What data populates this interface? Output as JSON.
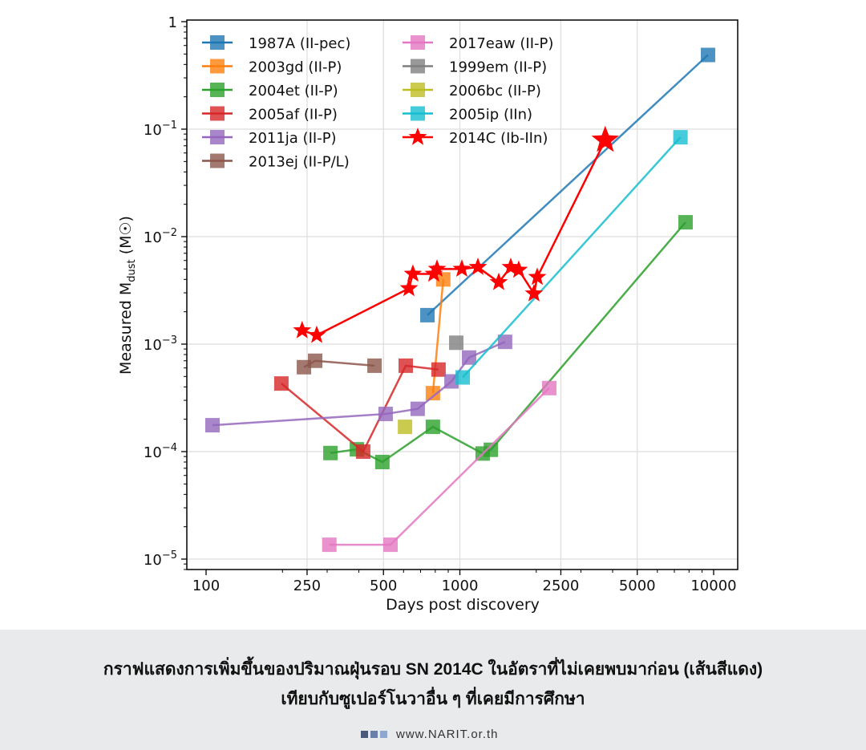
{
  "chart_data": {
    "type": "line",
    "xlabel": "Days post discovery",
    "ylabel": "Measured M_dust (M☉)",
    "xscale": "log",
    "yscale": "log",
    "xlim": [
      80,
      12500
    ],
    "ylim": [
      8e-06,
      1
    ],
    "xticks": [
      100,
      250,
      500,
      1000,
      2500,
      5000,
      10000
    ],
    "xticklabels": [
      "100",
      "250",
      "500",
      "1000",
      "2500",
      "5000",
      "10000"
    ],
    "yticks": [
      1,
      0.1,
      0.01,
      0.001,
      0.0001,
      1e-05
    ],
    "grid": true,
    "legend": "top-left",
    "series": [
      {
        "name": "1987A (II-pec)",
        "color": "#1f77b4",
        "marker": "square",
        "x": [
          745,
          9500
        ],
        "y": [
          0.00186,
          0.49
        ]
      },
      {
        "name": "2003gd (II-P)",
        "color": "#ff7f0e",
        "marker": "square",
        "x": [
          783,
          860
        ],
        "y": [
          0.00035,
          0.004
        ]
      },
      {
        "name": "2004et (II-P)",
        "color": "#2ca02c",
        "marker": "square",
        "x": [
          309,
          393,
          495,
          783,
          1230,
          1325,
          7750
        ],
        "y": [
          9.7e-05,
          0.000105,
          8e-05,
          0.00017,
          9.6e-05,
          0.000104,
          0.0136
        ]
      },
      {
        "name": "2005af (II-P)",
        "color": "#d62728",
        "marker": "square",
        "x": [
          198,
          416,
          612,
          824
        ],
        "y": [
          0.00043,
          0.0001,
          0.00063,
          0.00058
        ]
      },
      {
        "name": "2011ja (II-P)",
        "color": "#9467bd",
        "marker": "square",
        "x": [
          106,
          510,
          682,
          927,
          1087,
          1507
        ],
        "y": [
          0.000176,
          0.000224,
          0.00025,
          0.00045,
          0.00075,
          0.00105
        ]
      },
      {
        "name": "2013ej (II-P/L)",
        "color": "#8c564b",
        "marker": "square",
        "x": [
          243,
          269,
          461
        ],
        "y": [
          0.00061,
          0.0007,
          0.00063
        ]
      },
      {
        "name": "2017eaw (II-P)",
        "color": "#e377c2",
        "marker": "square",
        "x": [
          306,
          533,
          2250
        ],
        "y": [
          1.36e-05,
          1.36e-05,
          0.00039
        ]
      },
      {
        "name": "1999em (II-P)",
        "color": "#7f7f7f",
        "marker": "square",
        "x": [
          968
        ],
        "y": [
          0.00103
        ]
      },
      {
        "name": "2006bc (II-P)",
        "color": "#bcbd22",
        "marker": "square",
        "x": [
          608
        ],
        "y": [
          0.00017
        ]
      },
      {
        "name": "2005ip (IIn)",
        "color": "#17becf",
        "marker": "square",
        "x": [
          1026,
          7400
        ],
        "y": [
          0.00049,
          0.084
        ]
      },
      {
        "name": "2014C (Ib-IIn)",
        "color": "#ff0000",
        "marker": "star",
        "x": [
          239,
          273,
          630,
          653,
          789,
          813,
          1018,
          1178,
          1423,
          1587,
          1706,
          1959,
          2018,
          3740
        ],
        "y": [
          0.00134,
          0.00121,
          0.0033,
          0.0045,
          0.0045,
          0.005,
          0.005,
          0.0052,
          0.00376,
          0.0052,
          0.0049,
          0.00295,
          0.0042,
          0.079
        ]
      }
    ]
  },
  "caption": {
    "line1": "กราฟแสดงการเพิ่มขึ้นของปริมาณฝุ่นรอบ SN 2014C ในอัตราที่ไม่เคยพบมาก่อน (เส้นสีแดง)",
    "line2": "เทียบกับซูเปอร์โนวาอื่น ๆ ที่เคยมีการศึกษา"
  },
  "footer": {
    "website": "www.NARIT.or.th",
    "square_colors": [
      "#4a5a78",
      "#6a80a8",
      "#8fa6cf"
    ]
  }
}
